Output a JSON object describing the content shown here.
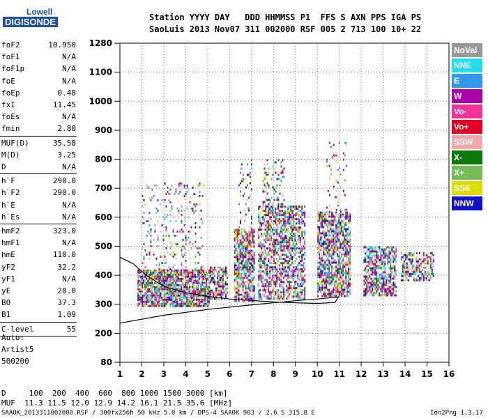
{
  "logo": {
    "line1": "Lowell",
    "line2": "DIGISONDE"
  },
  "header": {
    "line1": "Station YYYY DAY   DDD HHMMSS P1  FFS S AXN PPS IGA PS",
    "line2": "SaoLuis 2013 Nov07 311 002000 RSF 005 2 713 100 10+ 22"
  },
  "params": [
    {
      "name": "foF2",
      "value": "10.950",
      "sep": false
    },
    {
      "name": "foF1",
      "value": "N/A",
      "sep": false
    },
    {
      "name": "foF1p",
      "value": "N/A",
      "sep": false
    },
    {
      "name": "foE",
      "value": "N/A",
      "sep": false
    },
    {
      "name": "foEp",
      "value": "0.48",
      "sep": false
    },
    {
      "name": "fxI",
      "value": "11.45",
      "sep": false
    },
    {
      "name": "foEs",
      "value": "N/A",
      "sep": false
    },
    {
      "name": "fmin",
      "value": "2.80",
      "sep": true
    },
    {
      "name": "MUF(D)",
      "value": "35.58",
      "sep": false
    },
    {
      "name": "M(D)",
      "value": "3.25",
      "sep": false
    },
    {
      "name": "D",
      "value": "N/A",
      "sep": true
    },
    {
      "name": "h`F",
      "value": "290.0",
      "sep": false
    },
    {
      "name": "h`F2",
      "value": "290.0",
      "sep": false
    },
    {
      "name": "h`E",
      "value": "N/A",
      "sep": false
    },
    {
      "name": "h`Es",
      "value": "N/A",
      "sep": true
    },
    {
      "name": "hmF2",
      "value": "323.0",
      "sep": false
    },
    {
      "name": "hmF1",
      "value": "N/A",
      "sep": false
    },
    {
      "name": "hmE",
      "value": "110.0",
      "sep": false
    },
    {
      "name": "yF2",
      "value": "32.2",
      "sep": false
    },
    {
      "name": "yF1",
      "value": "N/A",
      "sep": false
    },
    {
      "name": "yE",
      "value": "20.0",
      "sep": false
    },
    {
      "name": "B0",
      "value": "37.3",
      "sep": false
    },
    {
      "name": "B1",
      "value": "1.09",
      "sep": true
    },
    {
      "name": "C-level",
      "value": "55",
      "sep": true
    }
  ],
  "auto": {
    "l1": "Auto:",
    "l2": "Artist5",
    "l3": "500200"
  },
  "footer": {
    "d_line": "D     100  200  400  600  800 1000 1500 3000 [km]",
    "muf_line": "MUF  11.3 11.5 12.0 12.9 14.2 16.1 21.5 35.6 [MHz]",
    "file_line": "SAAOK_2013311002000.RSF / 300fx256h 50 kHz 5.0 km / DPS-4 SAAOK 903 / 2.6 S 315.8 E",
    "version": "Ion2Png 1.3.17"
  },
  "chart_data": {
    "type": "scatter",
    "xlim": [
      1,
      16
    ],
    "x_ticks": [
      1,
      2,
      3,
      4,
      5,
      6,
      7,
      8,
      9,
      10,
      11,
      12,
      13,
      14,
      15,
      16
    ],
    "y_ticks": [
      80,
      200,
      300,
      400,
      500,
      600,
      700,
      800,
      900,
      1000,
      1100,
      1280
    ],
    "grid": true,
    "legend_position": "right",
    "legend": [
      {
        "name": "NoVal",
        "color": "#999999"
      },
      {
        "name": "NNE",
        "color": "#22ddee"
      },
      {
        "name": "E",
        "color": "#3399ee"
      },
      {
        "name": "W",
        "color": "#aa00aa"
      },
      {
        "name": "Vo-",
        "color": "#ee3399"
      },
      {
        "name": "Vo+",
        "color": "#dd0022"
      },
      {
        "name": "SSW",
        "color": "#f2a8a8"
      },
      {
        "name": "X-",
        "color": "#0a7a0a"
      },
      {
        "name": "X+",
        "color": "#77bb55"
      },
      {
        "name": "SSE",
        "color": "#dddd00"
      },
      {
        "name": "NNW",
        "color": "#1111cc"
      }
    ],
    "echo_regions": [
      {
        "x0": 1.8,
        "x1": 5.1,
        "y0": 295,
        "y1": 420,
        "density": 0.85
      },
      {
        "x0": 2.0,
        "x1": 4.8,
        "y0": 420,
        "y1": 720,
        "density": 0.12
      },
      {
        "x0": 5.1,
        "x1": 5.9,
        "y0": 320,
        "y1": 430,
        "density": 0.6
      },
      {
        "x0": 6.2,
        "x1": 7.1,
        "y0": 310,
        "y1": 560,
        "density": 0.7
      },
      {
        "x0": 6.4,
        "x1": 7.0,
        "y0": 560,
        "y1": 800,
        "density": 0.18
      },
      {
        "x0": 7.3,
        "x1": 9.4,
        "y0": 320,
        "y1": 640,
        "density": 0.6
      },
      {
        "x0": 7.5,
        "x1": 8.5,
        "y0": 640,
        "y1": 800,
        "density": 0.2
      },
      {
        "x0": 10.0,
        "x1": 11.5,
        "y0": 330,
        "y1": 620,
        "density": 0.7
      },
      {
        "x0": 10.4,
        "x1": 11.3,
        "y0": 620,
        "y1": 860,
        "density": 0.1
      },
      {
        "x0": 12.1,
        "x1": 13.6,
        "y0": 330,
        "y1": 500,
        "density": 0.65
      },
      {
        "x0": 13.8,
        "x1": 15.3,
        "y0": 380,
        "y1": 480,
        "density": 0.55
      }
    ],
    "traces": [
      {
        "name": "x-trace",
        "points": [
          [
            1,
            235
          ],
          [
            3,
            262
          ],
          [
            5,
            282
          ],
          [
            7,
            298
          ],
          [
            9,
            312
          ],
          [
            10,
            318
          ],
          [
            11,
            325
          ]
        ]
      },
      {
        "name": "o-trace",
        "points": [
          [
            1,
            462
          ],
          [
            1.6,
            440
          ],
          [
            2.2,
            400
          ],
          [
            3,
            362
          ],
          [
            4,
            340
          ],
          [
            5,
            327
          ],
          [
            6,
            318
          ],
          [
            7,
            313
          ],
          [
            8,
            308
          ],
          [
            9,
            305
          ],
          [
            10,
            303
          ],
          [
            10.8,
            306
          ],
          [
            11.0,
            330
          ],
          [
            11.05,
            345
          ]
        ]
      }
    ]
  }
}
